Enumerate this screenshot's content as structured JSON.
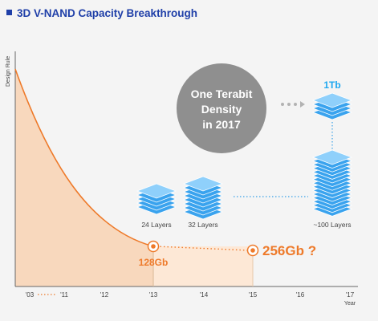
{
  "title": "3D V-NAND Capacity Breakthrough",
  "colors": {
    "title": "#1f3fa8",
    "curve": "#ee7a2a",
    "fill_main": "#f8d8bd",
    "fill_light": "#fde8d6",
    "chip": "#3aa3ee",
    "chip_light": "#8fd0fb",
    "bubble": "#8f8f8f",
    "tb_label": "#1ea7f0",
    "dots_blue": "#39a0e6",
    "dots_gray": "#b2b2b2",
    "axis_text": "#444444"
  },
  "bubble": {
    "line1": "One Terabit",
    "line2": "Density",
    "line3": "in 2017"
  },
  "labels": {
    "gb128": "128Gb",
    "gb256": "256Gb ?",
    "tb1": "1Tb",
    "layers24": "24 Layers",
    "layers32": "32 Layers",
    "layers100": "~100 Layers"
  },
  "chart_data": {
    "type": "area",
    "title": "3D V-NAND Capacity Breakthrough",
    "xlabel": "Year",
    "ylabel": "Design Rule",
    "x_ticks": [
      "'03",
      "'11",
      "'12",
      "'13",
      "'14",
      "'15",
      "'16",
      "'17"
    ],
    "x_axis_break": "dotted segment between '03 and '11",
    "points": [
      {
        "x": "'13",
        "label": "128Gb"
      },
      {
        "x": "'15",
        "label": "256Gb ?"
      }
    ],
    "stacks": [
      {
        "label": "24 Layers"
      },
      {
        "label": "32 Layers"
      },
      {
        "label": "~100 Layers"
      },
      {
        "label": "1Tb"
      }
    ],
    "annotation": "One Terabit Density in 2017",
    "grid": false
  }
}
